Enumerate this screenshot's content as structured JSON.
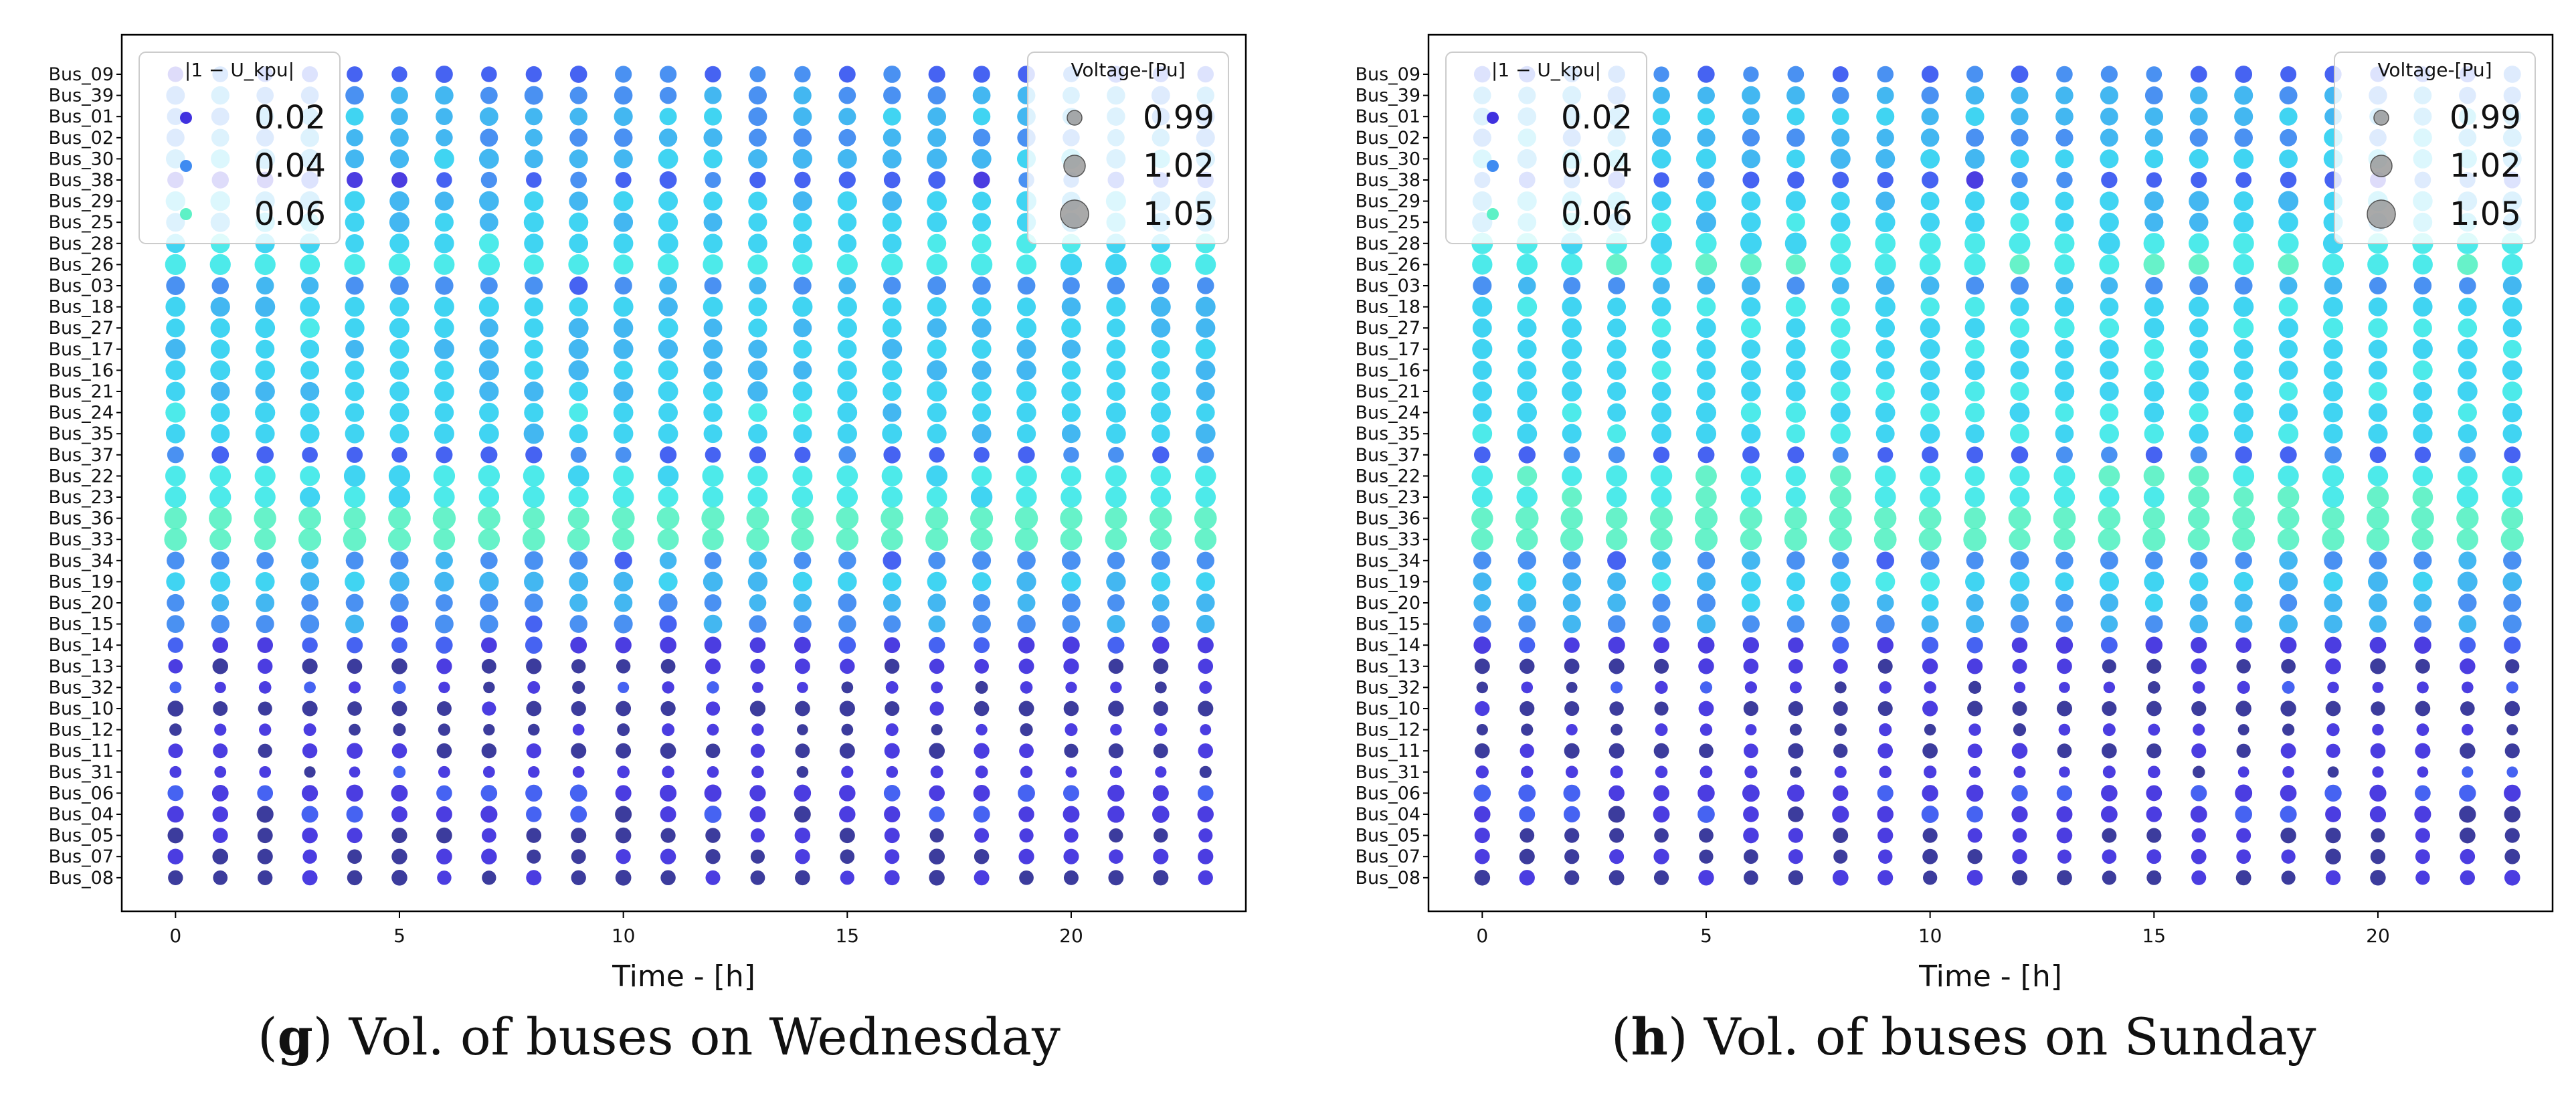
{
  "captions": [
    {
      "letter": "g",
      "text": "Vol. of buses on Wednesday"
    },
    {
      "letter": "h",
      "text": "Vol. of buses on Sunday"
    }
  ],
  "colors": {
    "c1": "#1a1a8c",
    "c2": "#2b1bdc",
    "c3": "#2648f0",
    "c4": "#2a7ef0",
    "c5": "#22aaee",
    "c6": "#1ecdf0",
    "c7": "#2ee6e6",
    "c8": "#4cf0c0",
    "legend_size": "#9a9a9a",
    "legend_box": "#ffffff"
  },
  "chart_data": [
    {
      "id": "g",
      "type": "scatter",
      "title": "",
      "xlabel": "Time - [h]",
      "ylabel": "",
      "xlim": [
        -1.2,
        23.9
      ],
      "xticks": [
        0,
        5,
        10,
        15,
        20
      ],
      "x": [
        0,
        1,
        2,
        3,
        4,
        5,
        6,
        7,
        8,
        9,
        10,
        11,
        12,
        13,
        14,
        15,
        16,
        17,
        18,
        19,
        20,
        21,
        22,
        23
      ],
      "categories": [
        "Bus_09",
        "Bus_39",
        "Bus_01",
        "Bus_02",
        "Bus_30",
        "Bus_38",
        "Bus_29",
        "Bus_25",
        "Bus_28",
        "Bus_26",
        "Bus_03",
        "Bus_18",
        "Bus_27",
        "Bus_17",
        "Bus_16",
        "Bus_21",
        "Bus_24",
        "Bus_35",
        "Bus_37",
        "Bus_22",
        "Bus_23",
        "Bus_36",
        "Bus_33",
        "Bus_34",
        "Bus_19",
        "Bus_20",
        "Bus_15",
        "Bus_14",
        "Bus_13",
        "Bus_32",
        "Bus_10",
        "Bus_12",
        "Bus_11",
        "Bus_31",
        "Bus_06",
        "Bus_04",
        "Bus_05",
        "Bus_07",
        "Bus_08"
      ],
      "color_by": "|1 - U_kpu| (deviation)",
      "size_by": "Voltage-[Pu]",
      "deviation_by_bus": [
        0.024,
        0.032,
        0.036,
        0.034,
        0.038,
        0.022,
        0.038,
        0.04,
        0.044,
        0.05,
        0.03,
        0.04,
        0.042,
        0.04,
        0.04,
        0.04,
        0.042,
        0.04,
        0.024,
        0.048,
        0.05,
        0.062,
        0.064,
        0.03,
        0.04,
        0.034,
        0.03,
        0.018,
        0.012,
        0.016,
        0.01,
        0.012,
        0.012,
        0.016,
        0.018,
        0.016,
        0.012,
        0.014,
        0.012
      ],
      "voltage_pu_by_bus": [
        1.02,
        1.03,
        1.03,
        1.03,
        1.04,
        1.02,
        1.04,
        1.04,
        1.04,
        1.05,
        1.03,
        1.04,
        1.04,
        1.04,
        1.04,
        1.04,
        1.04,
        1.04,
        1.02,
        1.05,
        1.05,
        1.06,
        1.06,
        1.03,
        1.04,
        1.03,
        1.03,
        1.02,
        1.01,
        0.99,
        1.01,
        0.99,
        1.01,
        0.99,
        1.02,
        1.02,
        1.01,
        1.01,
        1.01
      ],
      "legend_color": {
        "title": "|1 − U_kpu|",
        "entries": [
          "0.02",
          "0.04",
          "0.06"
        ]
      },
      "legend_size": {
        "title": "Voltage-[Pu]",
        "entries": [
          "0.99",
          "1.02",
          "1.05"
        ]
      }
    },
    {
      "id": "h",
      "type": "scatter",
      "title": "",
      "xlabel": "Time - [h]",
      "ylabel": "",
      "xlim": [
        -1.2,
        23.9
      ],
      "xticks": [
        0,
        5,
        10,
        15,
        20
      ],
      "x": [
        0,
        1,
        2,
        3,
        4,
        5,
        6,
        7,
        8,
        9,
        10,
        11,
        12,
        13,
        14,
        15,
        16,
        17,
        18,
        19,
        20,
        21,
        22,
        23
      ],
      "categories": [
        "Bus_09",
        "Bus_39",
        "Bus_01",
        "Bus_02",
        "Bus_30",
        "Bus_38",
        "Bus_29",
        "Bus_25",
        "Bus_28",
        "Bus_26",
        "Bus_03",
        "Bus_18",
        "Bus_27",
        "Bus_17",
        "Bus_16",
        "Bus_21",
        "Bus_24",
        "Bus_35",
        "Bus_37",
        "Bus_22",
        "Bus_23",
        "Bus_36",
        "Bus_33",
        "Bus_34",
        "Bus_19",
        "Bus_20",
        "Bus_15",
        "Bus_14",
        "Bus_13",
        "Bus_32",
        "Bus_10",
        "Bus_12",
        "Bus_11",
        "Bus_31",
        "Bus_06",
        "Bus_04",
        "Bus_05",
        "Bus_07",
        "Bus_08"
      ],
      "color_by": "|1 - U_kpu| (deviation)",
      "size_by": "Voltage-[Pu]",
      "deviation_by_bus": [
        0.026,
        0.034,
        0.038,
        0.036,
        0.04,
        0.022,
        0.04,
        0.042,
        0.048,
        0.054,
        0.032,
        0.044,
        0.046,
        0.044,
        0.044,
        0.044,
        0.046,
        0.044,
        0.024,
        0.052,
        0.054,
        0.064,
        0.066,
        0.03,
        0.042,
        0.036,
        0.032,
        0.018,
        0.012,
        0.016,
        0.01,
        0.012,
        0.012,
        0.016,
        0.018,
        0.016,
        0.012,
        0.014,
        0.012
      ],
      "voltage_pu_by_bus": [
        1.02,
        1.03,
        1.03,
        1.03,
        1.04,
        1.02,
        1.04,
        1.04,
        1.05,
        1.05,
        1.03,
        1.04,
        1.04,
        1.04,
        1.04,
        1.04,
        1.04,
        1.04,
        1.02,
        1.05,
        1.05,
        1.06,
        1.06,
        1.03,
        1.04,
        1.03,
        1.03,
        1.02,
        1.01,
        0.99,
        1.01,
        0.99,
        1.01,
        0.99,
        1.02,
        1.02,
        1.01,
        1.01,
        1.01
      ],
      "legend_color": {
        "title": "|1 − U_kpu|",
        "entries": [
          "0.02",
          "0.04",
          "0.06"
        ]
      },
      "legend_size": {
        "title": "Voltage-[Pu]",
        "entries": [
          "0.99",
          "1.02",
          "1.05"
        ]
      }
    }
  ]
}
